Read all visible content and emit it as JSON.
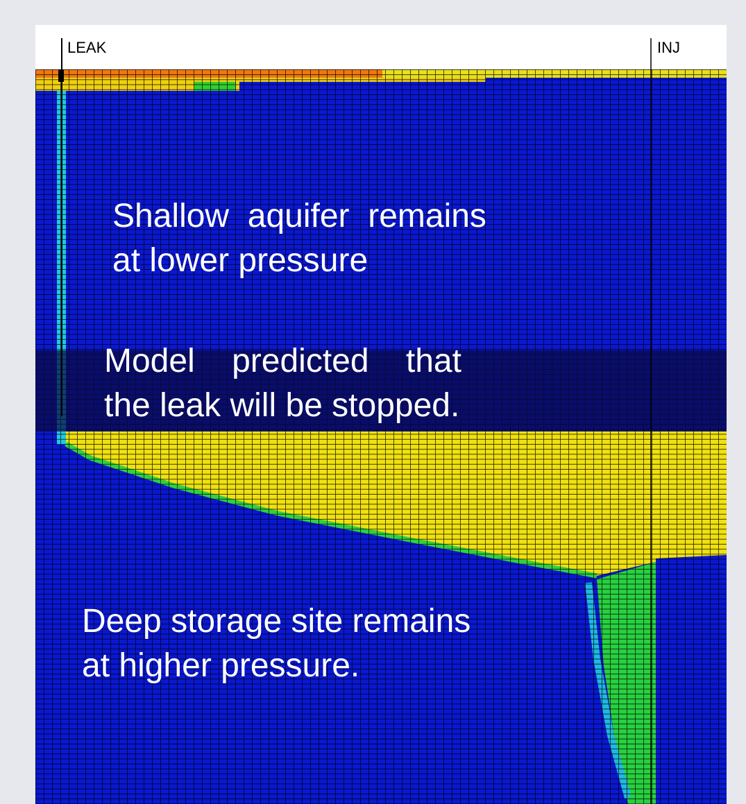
{
  "labels": {
    "leak": "LEAK",
    "inj": "INJ"
  },
  "annotations": [
    {
      "lines": [
        "Shallow  aquifer  remains",
        "at lower pressure"
      ]
    },
    {
      "lines": [
        "Model    predicted    that",
        "the leak will be stopped."
      ]
    },
    {
      "lines": [
        "Deep storage site remains",
        "at higher pressure."
      ]
    }
  ]
}
